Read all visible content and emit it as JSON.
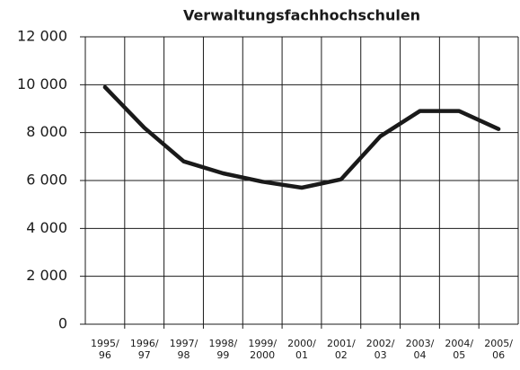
{
  "chart_data": {
    "type": "line",
    "title": "Verwaltungsfachhochschulen",
    "categories": [
      [
        "1995/",
        "96"
      ],
      [
        "1996/",
        "97"
      ],
      [
        "1997/",
        "98"
      ],
      [
        "1998/",
        "99"
      ],
      [
        "1999/",
        "2000"
      ],
      [
        "2000/",
        "01"
      ],
      [
        "2001/",
        "02"
      ],
      [
        "2002/",
        "03"
      ],
      [
        "2003/",
        "04"
      ],
      [
        "2004/",
        "05"
      ],
      [
        "2005/",
        "06"
      ]
    ],
    "series": [
      {
        "color": "#1a1a1a",
        "values": [
          9900,
          8200,
          6800,
          6300,
          5950,
          5700,
          6050,
          7850,
          8900,
          8900,
          8150
        ]
      }
    ],
    "ylim": [
      0,
      12000
    ],
    "yticks": [
      {
        "value": 0,
        "label": "0"
      },
      {
        "value": 2000,
        "label": "2 000"
      },
      {
        "value": 4000,
        "label": "4 000"
      },
      {
        "value": 6000,
        "label": "6 000"
      },
      {
        "value": 8000,
        "label": "8 000"
      },
      {
        "value": 10000,
        "label": "10 000"
      },
      {
        "value": 12000,
        "label": "12 000"
      }
    ],
    "grid": true
  }
}
